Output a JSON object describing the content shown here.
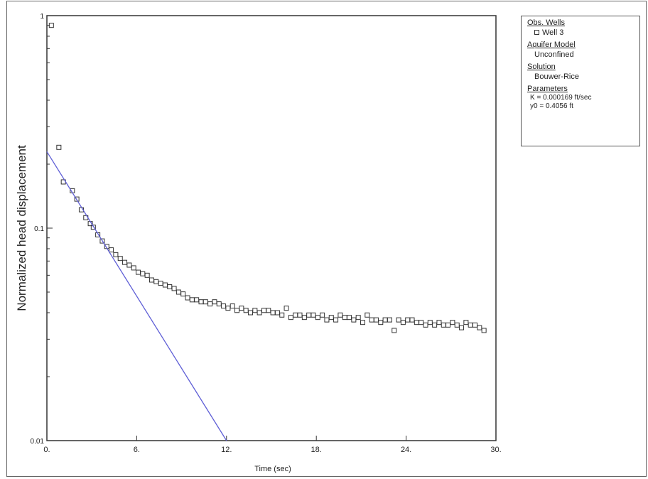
{
  "chart_data": {
    "type": "scatter",
    "xlabel": "Time (sec)",
    "ylabel": "Normalized head displacement",
    "xlim": [
      0,
      30
    ],
    "ylim": [
      0.01,
      1
    ],
    "yscale": "log",
    "grid": false,
    "x_ticks": [
      "0.",
      "6.",
      "12.",
      "18.",
      "24.",
      "30."
    ],
    "y_ticks": [
      "0.01",
      "0.1",
      "1"
    ],
    "legend_position": "right, outside plot",
    "series": [
      {
        "name": "Well 3",
        "kind": "markers",
        "marker": "open-square",
        "x": [
          0.3,
          0.8,
          1.1,
          1.7,
          2.0,
          2.3,
          2.6,
          2.9,
          3.1,
          3.4,
          3.7,
          4.0,
          4.3,
          4.6,
          4.9,
          5.2,
          5.5,
          5.8,
          6.1,
          6.4,
          6.7,
          7.0,
          7.3,
          7.6,
          7.9,
          8.2,
          8.5,
          8.8,
          9.1,
          9.4,
          9.7,
          10.0,
          10.3,
          10.6,
          10.9,
          11.2,
          11.5,
          11.8,
          12.1,
          12.4,
          12.7,
          13.0,
          13.3,
          13.6,
          13.9,
          14.2,
          14.5,
          14.8,
          15.1,
          15.4,
          15.7,
          16.0,
          16.3,
          16.6,
          16.9,
          17.2,
          17.5,
          17.8,
          18.1,
          18.4,
          18.7,
          19.0,
          19.3,
          19.6,
          19.9,
          20.2,
          20.5,
          20.8,
          21.1,
          21.4,
          21.7,
          22.0,
          22.3,
          22.6,
          22.9,
          23.2,
          23.5,
          23.8,
          24.1,
          24.4,
          24.7,
          25.0,
          25.3,
          25.6,
          25.9,
          26.2,
          26.5,
          26.8,
          27.1,
          27.4,
          27.7,
          28.0,
          28.3,
          28.6,
          28.9,
          29.2
        ],
        "y": [
          0.9,
          0.24,
          0.165,
          0.15,
          0.137,
          0.122,
          0.112,
          0.105,
          0.101,
          0.093,
          0.087,
          0.082,
          0.079,
          0.075,
          0.072,
          0.069,
          0.067,
          0.065,
          0.062,
          0.061,
          0.06,
          0.057,
          0.056,
          0.055,
          0.054,
          0.053,
          0.052,
          0.05,
          0.049,
          0.047,
          0.046,
          0.046,
          0.045,
          0.045,
          0.044,
          0.045,
          0.044,
          0.043,
          0.042,
          0.043,
          0.041,
          0.042,
          0.041,
          0.04,
          0.041,
          0.04,
          0.041,
          0.041,
          0.04,
          0.04,
          0.039,
          0.042,
          0.038,
          0.039,
          0.039,
          0.038,
          0.039,
          0.039,
          0.038,
          0.039,
          0.037,
          0.038,
          0.037,
          0.039,
          0.038,
          0.038,
          0.037,
          0.038,
          0.036,
          0.039,
          0.037,
          0.037,
          0.036,
          0.037,
          0.037,
          0.033,
          0.037,
          0.036,
          0.037,
          0.037,
          0.036,
          0.036,
          0.035,
          0.036,
          0.035,
          0.036,
          0.035,
          0.035,
          0.036,
          0.035,
          0.034,
          0.036,
          0.035,
          0.035,
          0.034,
          0.033
        ]
      },
      {
        "kind": "line",
        "color": "#5f5fd6",
        "x": [
          0,
          12.0
        ],
        "y": [
          0.229,
          0.01
        ]
      }
    ]
  },
  "legend": {
    "obs_wells_heading": "Obs. Wells",
    "obs_well_entry": "Well 3",
    "aquifer_model_heading": "Aquifer Model",
    "aquifer_model_value": "Unconfined",
    "solution_heading": "Solution",
    "solution_value": "Bouwer-Rice",
    "parameters_heading": "Parameters",
    "param_k": "K  = 0.000169 ft/sec",
    "param_y0": "y0 = 0.4056 ft"
  }
}
